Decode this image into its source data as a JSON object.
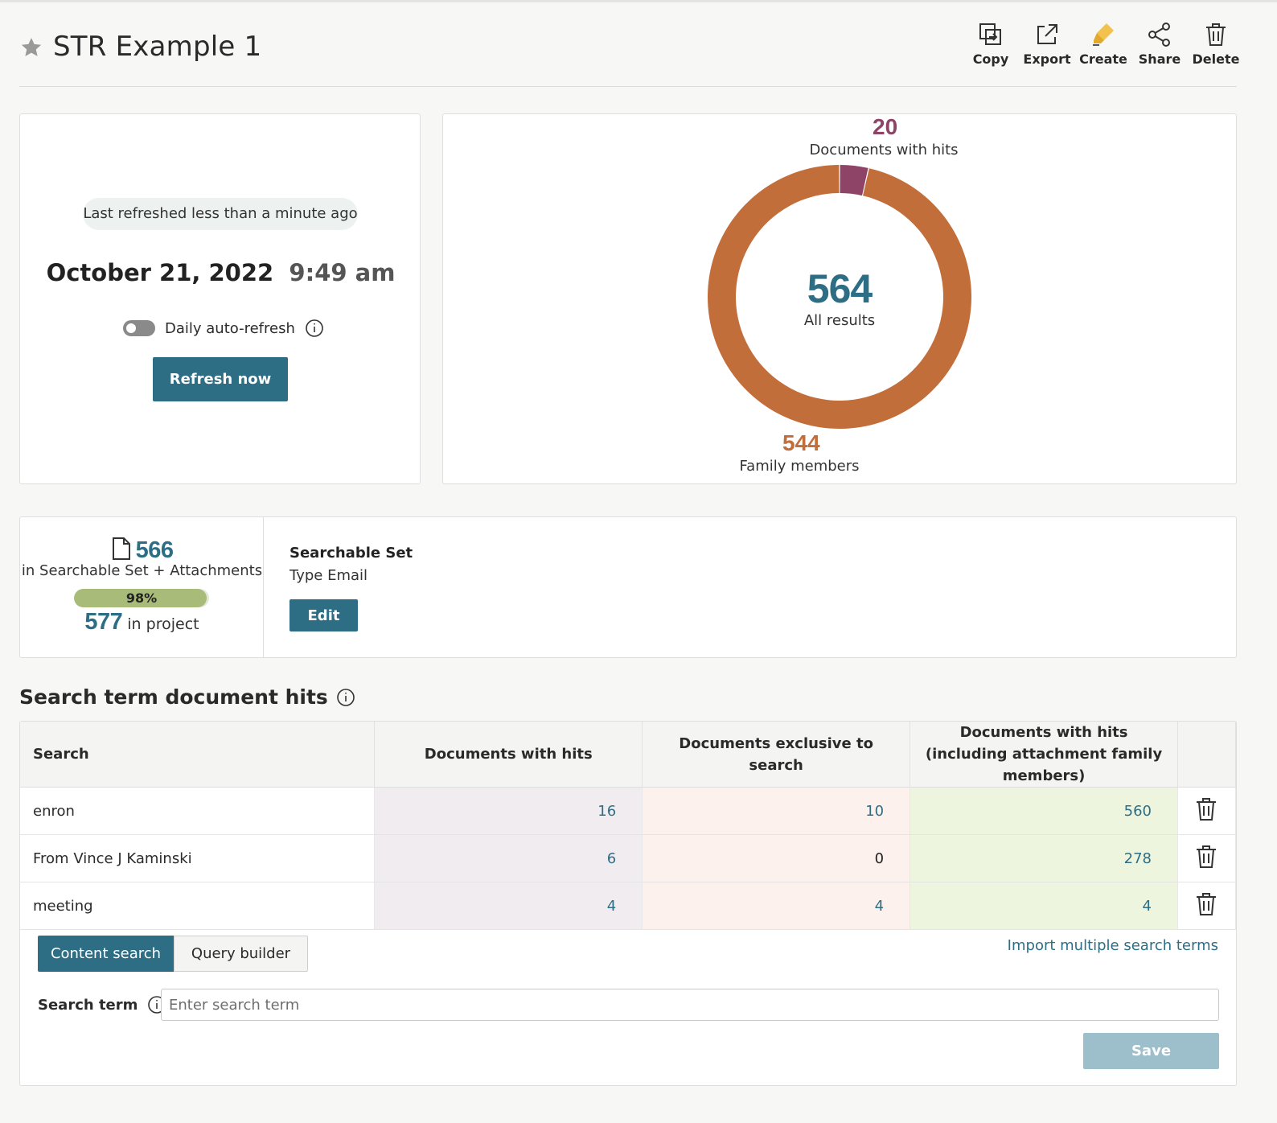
{
  "header": {
    "title": "STR Example 1",
    "actions": [
      {
        "label": "Copy",
        "icon": "copy-icon"
      },
      {
        "label": "Export",
        "icon": "export-icon"
      },
      {
        "label": "Create",
        "icon": "highlighter-icon"
      },
      {
        "label": "Share",
        "icon": "share-icon"
      },
      {
        "label": "Delete",
        "icon": "trash-icon"
      }
    ]
  },
  "refresh": {
    "status": "Last refreshed less than a minute ago",
    "date": "October 21, 2022",
    "time": "9:49 am",
    "auto_refresh_label": "Daily auto-refresh",
    "auto_refresh_on": false,
    "button_label": "Refresh now"
  },
  "chart_data": {
    "type": "pie",
    "total": "564",
    "total_label": "All results",
    "slices": [
      {
        "label": "Documents with hits",
        "value": 20,
        "color": "#8e4466"
      },
      {
        "label": "Family members",
        "value": 544,
        "color": "#c26e3a"
      }
    ]
  },
  "stats": {
    "searchable_count": "566",
    "searchable_label": "in Searchable Set + Attachments",
    "percent_label": "98%",
    "percent_value": 0.98,
    "project_count": "577",
    "project_label": "in project",
    "set_title": "Searchable Set",
    "set_type": "Type Email",
    "edit_label": "Edit"
  },
  "terms": {
    "section_title": "Search term document hits",
    "columns": [
      "Search",
      "Documents with hits",
      "Documents exclusive to search",
      "Documents with hits (including attachment family members)"
    ],
    "rows": [
      {
        "search": "enron",
        "hits": "16",
        "exclusive": "10",
        "family": "560"
      },
      {
        "search": "From Vince J Kaminski",
        "hits": "6",
        "exclusive": "0",
        "family": "278"
      },
      {
        "search": "meeting",
        "hits": "4",
        "exclusive": "4",
        "family": "4"
      }
    ],
    "tab_content": "Content search",
    "tab_query": "Query builder",
    "import_label": "Import multiple search terms",
    "term_label": "Search term",
    "term_placeholder": "Enter search term",
    "save_label": "Save"
  },
  "colors": {
    "accent": "#2e6e85",
    "hits": "#8e4466",
    "family": "#c26e3a"
  }
}
